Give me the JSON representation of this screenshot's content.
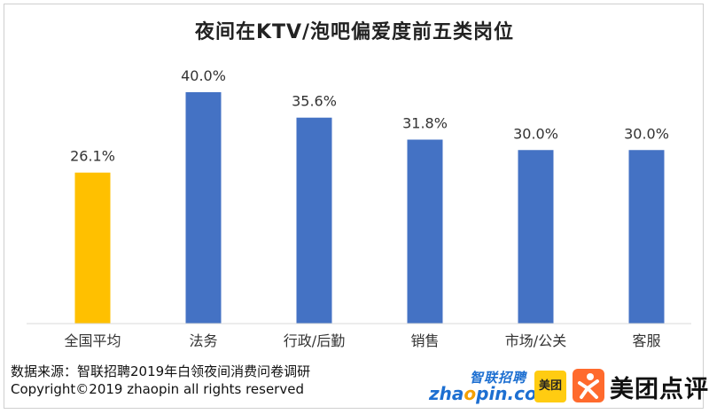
{
  "title": "夜间在KTV/泡吧偏爱度前五类岗位",
  "chart_data": {
    "type": "bar",
    "title": "夜间在KTV/泡吧偏爱度前五类岗位",
    "categories": [
      "全国平均",
      "法务",
      "行政/后勤",
      "销售",
      "市场/公关",
      "客服"
    ],
    "values": [
      26.1,
      40.0,
      35.6,
      31.8,
      30.0,
      30.0
    ],
    "value_labels": [
      "26.1%",
      "40.0%",
      "35.6%",
      "31.8%",
      "30.0%",
      "30.0%"
    ],
    "colors": [
      "#ffc000",
      "#4472c4",
      "#4472c4",
      "#4472c4",
      "#4472c4",
      "#4472c4"
    ],
    "unit": "%",
    "ylim": [
      0,
      40.0
    ],
    "grid": false,
    "legend": "none",
    "xlabel": "",
    "ylabel": ""
  },
  "source": {
    "line1": "数据来源：智联招聘2019年白领夜间消费问卷调研",
    "line2": "Copyright©2019 zhaopin all rights reserved"
  },
  "logos": {
    "zhaopin_cn": "智联招聘",
    "zhaopin_en_pre": "zha",
    "zhaopin_en_o": "o",
    "zhaopin_en_post": "pin.com",
    "meituan": "美团",
    "meituan_dianping": "美团点评",
    "accent_blue": "#1d6fd1",
    "accent_yellow": "#ffcc11",
    "accent_orange": "#ff6a2d"
  }
}
